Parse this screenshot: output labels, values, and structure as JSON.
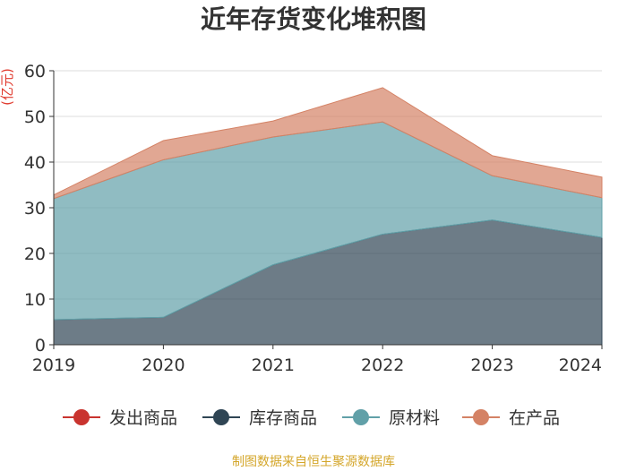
{
  "chart_data": {
    "type": "area",
    "stacked": true,
    "title": "近年存货变化堆积图",
    "ylabel": "(亿元)",
    "xlabel": "",
    "categories": [
      "2019",
      "2020",
      "2021",
      "2022",
      "2023",
      "2024"
    ],
    "ylim": [
      0,
      60
    ],
    "yticks": [
      0,
      10,
      20,
      30,
      40,
      50,
      60
    ],
    "grid": true,
    "legend_position": "bottom",
    "series": [
      {
        "name": "发出商品",
        "color": "#c9342f",
        "values": [
          0,
          0,
          0,
          0,
          0,
          0
        ]
      },
      {
        "name": "库存商品",
        "color": "#2f4554",
        "values": [
          5.5,
          6.0,
          17.5,
          24.2,
          27.3,
          23.5
        ]
      },
      {
        "name": "原材料",
        "color": "#61a0a8",
        "values": [
          26.5,
          34.5,
          28.0,
          24.6,
          9.7,
          8.7
        ]
      },
      {
        "name": "在产品",
        "color": "#d48265",
        "values": [
          0.8,
          4.2,
          3.5,
          7.5,
          4.4,
          4.5
        ]
      }
    ]
  },
  "footer": {
    "source": "制图数据来自恒生聚源数据库"
  }
}
